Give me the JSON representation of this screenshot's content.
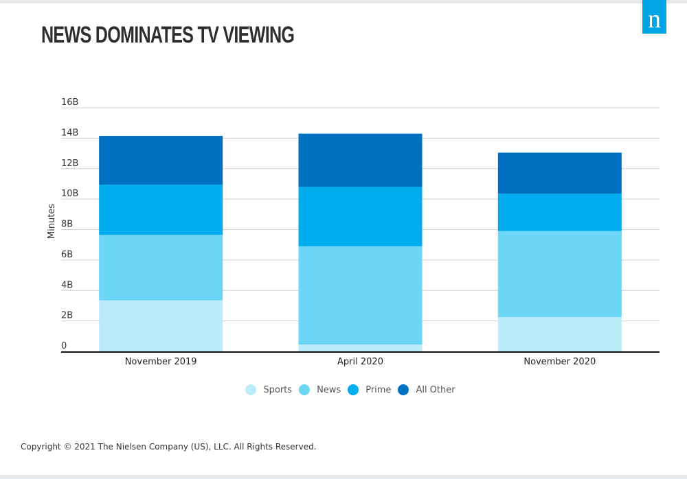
{
  "page": {
    "title": "NEWS DOMINATES TV VIEWING",
    "copyright": "Copyright © 2021 The Nielsen Company (US), LLC. All Rights Reserved.",
    "logo_letter": "n",
    "logo_color": "#00a5e6"
  },
  "chart_data": {
    "type": "bar",
    "stacked": true,
    "title": "",
    "xlabel": "",
    "ylabel": "Minutes",
    "ylim": [
      0,
      16
    ],
    "yticks": [
      0,
      2,
      4,
      6,
      8,
      10,
      12,
      14,
      16
    ],
    "ytick_labels": [
      "0",
      "2B",
      "4B",
      "6B",
      "8B",
      "10B",
      "12B",
      "14B",
      "16B"
    ],
    "unit": "billion minutes",
    "grid": true,
    "legend_position": "bottom",
    "categories": [
      "November 2019",
      "April 2020",
      "November 2020"
    ],
    "series": [
      {
        "name": "Sports",
        "color": "#bcebfa",
        "values": [
          3.35,
          0.45,
          2.25
        ]
      },
      {
        "name": "News",
        "color": "#6cd6f7",
        "values": [
          4.3,
          6.45,
          5.65
        ]
      },
      {
        "name": "Prime",
        "color": "#00aced",
        "values": [
          3.3,
          3.9,
          2.45
        ]
      },
      {
        "name": "All Other",
        "color": "#0071c1",
        "values": [
          3.2,
          3.5,
          2.7
        ]
      }
    ]
  }
}
